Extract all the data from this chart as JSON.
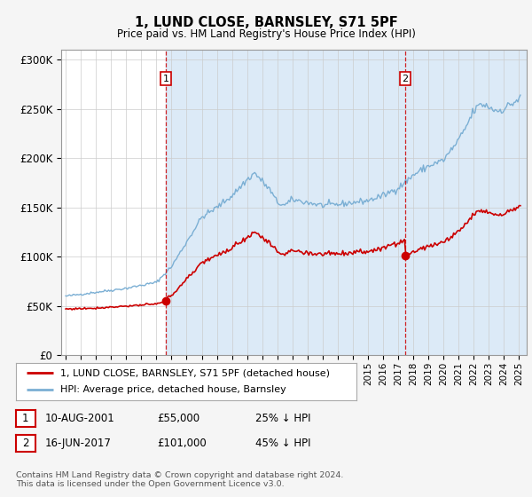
{
  "title": "1, LUND CLOSE, BARNSLEY, S71 5PF",
  "subtitle": "Price paid vs. HM Land Registry's House Price Index (HPI)",
  "ylim": [
    0,
    310000
  ],
  "yticks": [
    0,
    50000,
    100000,
    150000,
    200000,
    250000,
    300000
  ],
  "ytick_labels": [
    "£0",
    "£50K",
    "£100K",
    "£150K",
    "£200K",
    "£250K",
    "£300K"
  ],
  "legend_line1": "1, LUND CLOSE, BARNSLEY, S71 5PF (detached house)",
  "legend_line2": "HPI: Average price, detached house, Barnsley",
  "annotation1_label": "1",
  "annotation1_date": "10-AUG-2001",
  "annotation1_price": "£55,000",
  "annotation1_hpi": "25% ↓ HPI",
  "annotation2_label": "2",
  "annotation2_date": "16-JUN-2017",
  "annotation2_price": "£101,000",
  "annotation2_hpi": "45% ↓ HPI",
  "footer": "Contains HM Land Registry data © Crown copyright and database right 2024.\nThis data is licensed under the Open Government Licence v3.0.",
  "color_property": "#cc0000",
  "color_hpi": "#7bafd4",
  "shade_color": "#dceaf7",
  "background_color": "#f5f5f5",
  "plot_bg_color": "#ffffff",
  "sale1_x": 2001.625,
  "sale1_y": 55000,
  "sale2_x": 2017.458,
  "sale2_y": 101000,
  "xmin": 1994.7,
  "xmax": 2025.5
}
